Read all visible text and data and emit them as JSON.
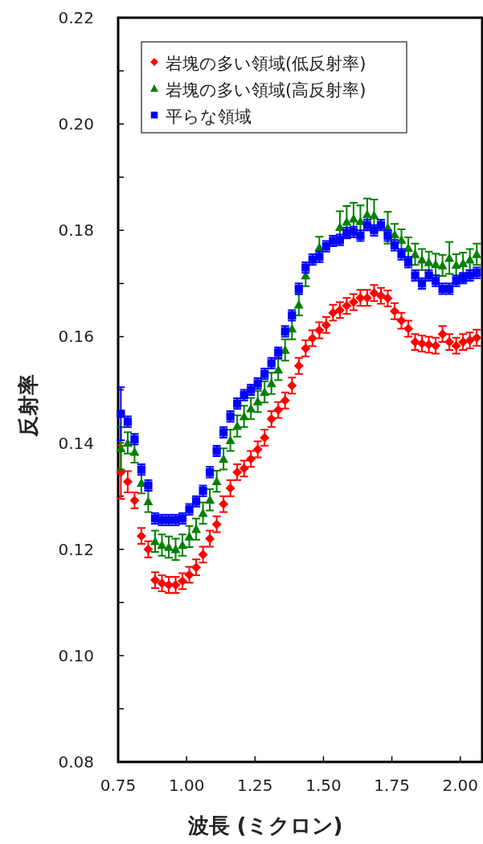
{
  "chart_data": {
    "type": "scatter",
    "xlabel": "波長 (ミクロン)",
    "ylabel": "反射率",
    "legend": "top left",
    "grid": false,
    "xlim": [
      0.75,
      2.08
    ],
    "ylim": [
      0.08,
      0.22
    ],
    "xticks": [
      0.75,
      {
        "value": 1,
        "label": "1.00"
      },
      1.25,
      {
        "value": 1.5,
        "label": "1.50"
      },
      1.75,
      {
        "value": 2,
        "label": "2.00"
      }
    ],
    "yticks": [
      0.08,
      {
        "value": 0.09,
        "label": null
      },
      {
        "value": 0.1,
        "label": "0.10"
      },
      {
        "value": 0.11,
        "label": null
      },
      0.12,
      {
        "value": 0.13,
        "label": null
      },
      0.14,
      {
        "value": 0.15,
        "label": null
      },
      0.16,
      {
        "value": 0.17,
        "label": null
      },
      0.18,
      {
        "value": 0.19,
        "label": null
      },
      {
        "value": 0.2,
        "label": "0.20"
      },
      {
        "value": 0.21,
        "label": null
      },
      0.22
    ],
    "x": [
      0.76,
      0.785,
      0.81,
      0.835,
      0.86,
      0.885,
      0.91,
      0.935,
      0.96,
      0.985,
      1.01,
      1.035,
      1.06,
      1.085,
      1.11,
      1.135,
      1.16,
      1.185,
      1.21,
      1.235,
      1.26,
      1.285,
      1.31,
      1.335,
      1.36,
      1.385,
      1.41,
      1.435,
      1.46,
      1.485,
      1.51,
      1.535,
      1.56,
      1.585,
      1.61,
      1.635,
      1.66,
      1.685,
      1.71,
      1.735,
      1.76,
      1.785,
      1.81,
      1.835,
      1.86,
      1.885,
      1.91,
      1.935,
      1.96,
      1.985,
      2.01,
      2.035,
      2.06
    ],
    "series": [
      {
        "name": "岩塊の多い領域(低反射率)",
        "color": "#ff0000",
        "marker": "diamond",
        "values": [
          0.1345,
          0.1327,
          0.1292,
          0.1225,
          0.12,
          0.1142,
          0.1136,
          0.1133,
          0.1133,
          0.114,
          0.1152,
          0.1166,
          0.119,
          0.122,
          0.1247,
          0.1285,
          0.1315,
          0.1345,
          0.1352,
          0.137,
          0.1388,
          0.141,
          0.1445,
          0.1462,
          0.148,
          0.1508,
          0.1545,
          0.1578,
          0.1597,
          0.1612,
          0.1622,
          0.1645,
          0.165,
          0.1658,
          0.1665,
          0.1673,
          0.1673,
          0.1682,
          0.1677,
          0.1672,
          0.1648,
          0.163,
          0.1615,
          0.159,
          0.1587,
          0.1585,
          0.1583,
          0.1605,
          0.159,
          0.1583,
          0.159,
          0.1593,
          0.1598
        ],
        "errors": [
          0.005,
          0.002,
          0.0015,
          0.0015,
          0.0015,
          0.0015,
          0.0015,
          0.0015,
          0.0015,
          0.0015,
          0.0015,
          0.0015,
          0.0015,
          0.0015,
          0.0015,
          0.0015,
          0.0015,
          0.0015,
          0.0015,
          0.0015,
          0.0015,
          0.0015,
          0.0015,
          0.0015,
          0.0015,
          0.0015,
          0.0015,
          0.0015,
          0.0015,
          0.0015,
          0.0015,
          0.0015,
          0.0015,
          0.0015,
          0.0015,
          0.0015,
          0.0015,
          0.0015,
          0.0015,
          0.0015,
          0.0015,
          0.0015,
          0.0015,
          0.0015,
          0.0015,
          0.0015,
          0.0015,
          0.0015,
          0.0015,
          0.0015,
          0.0015,
          0.0015,
          0.0015
        ]
      },
      {
        "name": "岩塊の多い領域(高反射率)",
        "color": "#008000",
        "marker": "triangle",
        "values": [
          0.139,
          0.14,
          0.1383,
          0.1325,
          0.129,
          0.1215,
          0.1208,
          0.1204,
          0.12,
          0.1208,
          0.1224,
          0.1238,
          0.1268,
          0.1293,
          0.1328,
          0.137,
          0.1405,
          0.1432,
          0.145,
          0.1465,
          0.1478,
          0.1496,
          0.1512,
          0.1538,
          0.1575,
          0.1615,
          0.166,
          0.1715,
          null,
          0.1768,
          null,
          null,
          0.1806,
          0.1816,
          0.1822,
          0.1817,
          0.183,
          0.1828,
          null,
          0.1805,
          0.1792,
          0.1782,
          0.1767,
          0.1755,
          0.1745,
          0.174,
          0.1736,
          0.1734,
          0.1748,
          0.1735,
          0.1738,
          0.1745,
          0.1755
        ],
        "errors": [
          0.004,
          0.002,
          0.002,
          0.002,
          0.002,
          0.002,
          0.002,
          0.002,
          0.002,
          0.002,
          0.002,
          0.002,
          0.002,
          0.002,
          0.002,
          0.002,
          0.002,
          0.002,
          0.002,
          0.002,
          0.002,
          0.002,
          0.002,
          0.002,
          0.002,
          0.002,
          0.002,
          0.002,
          null,
          0.002,
          null,
          null,
          0.003,
          0.003,
          0.003,
          0.003,
          0.003,
          0.003,
          null,
          0.003,
          0.002,
          0.002,
          0.002,
          0.002,
          0.002,
          0.002,
          0.002,
          0.002,
          0.003,
          0.002,
          0.002,
          0.002,
          0.002
        ]
      },
      {
        "name": "平らな領域",
        "color": "#0000ff",
        "marker": "square",
        "values": [
          0.1455,
          0.144,
          0.1407,
          0.135,
          0.132,
          0.1258,
          0.1255,
          0.1255,
          0.1255,
          0.1258,
          0.1275,
          0.129,
          0.131,
          0.1345,
          0.1385,
          0.142,
          0.145,
          0.1474,
          0.149,
          0.15,
          0.1512,
          0.153,
          0.155,
          0.157,
          0.161,
          0.164,
          0.169,
          0.173,
          0.1745,
          0.175,
          0.177,
          0.178,
          0.1782,
          0.1795,
          0.1797,
          0.179,
          0.181,
          0.18,
          0.181,
          0.179,
          0.1772,
          0.1755,
          0.174,
          0.1715,
          0.17,
          0.1715,
          0.1705,
          0.169,
          0.169,
          0.1705,
          0.171,
          0.1715,
          0.172
        ],
        "errors": [
          0.005,
          0.001,
          0.001,
          0.001,
          0.001,
          0.001,
          0.001,
          0.001,
          0.001,
          0.001,
          0.001,
          0.001,
          0.001,
          0.001,
          0.001,
          0.001,
          0.001,
          0.001,
          0.001,
          0.001,
          0.001,
          0.001,
          0.001,
          0.001,
          0.001,
          0.001,
          0.001,
          0.001,
          0.001,
          0.001,
          0.001,
          0.001,
          0.001,
          0.001,
          0.001,
          0.001,
          0.001,
          0.001,
          0.001,
          0.001,
          0.001,
          0.001,
          0.001,
          0.001,
          0.001,
          0.001,
          0.001,
          0.001,
          0.001,
          0.001,
          0.001,
          0.001,
          0.001
        ]
      }
    ]
  }
}
